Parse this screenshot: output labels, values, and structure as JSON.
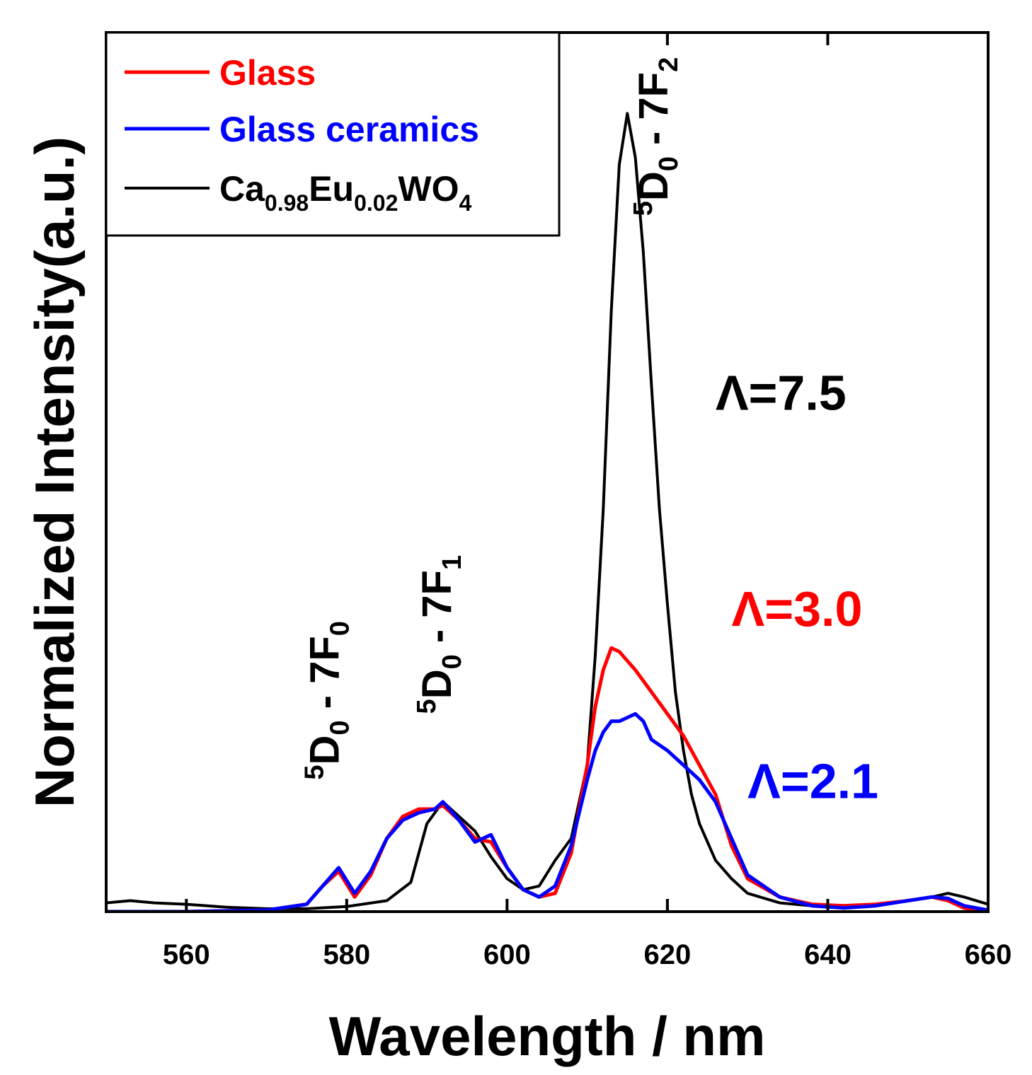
{
  "chart_data": {
    "type": "line",
    "title": "",
    "xlabel": "Wavelength / nm",
    "ylabel": "Normalized Intensity(a.u.)",
    "xlim": [
      550,
      660
    ],
    "ylim": [
      0,
      1.1
    ],
    "x_ticks": [
      560,
      580,
      600,
      620,
      640,
      660
    ],
    "y_ticks_shown": false,
    "grid": false,
    "legend_position": "top-left",
    "legend": [
      {
        "label": "Glass",
        "color": "#ff0000"
      },
      {
        "label": "Glass ceramics",
        "color": "#0000ff"
      },
      {
        "parts": [
          {
            "t": "Ca",
            "sub": false
          },
          {
            "t": "0.98",
            "sub": true
          },
          {
            "t": "Eu",
            "sub": false
          },
          {
            "t": "0.02",
            "sub": true
          },
          {
            "t": "WO",
            "sub": false
          },
          {
            "t": "4",
            "sub": true
          }
        ],
        "color": "#000000"
      }
    ],
    "series": [
      {
        "name": "Glass",
        "color": "#ff0000",
        "x": [
          550,
          560,
          570,
          575,
          577,
          579,
          581,
          583,
          585,
          587,
          589,
          591,
          592,
          594,
          596,
          598,
          600,
          602,
          604,
          606,
          608,
          610,
          611,
          612,
          613,
          614,
          616,
          618,
          620,
          622,
          624,
          626,
          628,
          630,
          634,
          638,
          642,
          646,
          650,
          653,
          655,
          657,
          660
        ],
        "y": [
          0.0,
          0.0,
          0.002,
          0.01,
          0.035,
          0.055,
          0.02,
          0.05,
          0.1,
          0.13,
          0.14,
          0.14,
          0.145,
          0.125,
          0.1,
          0.095,
          0.06,
          0.03,
          0.02,
          0.025,
          0.08,
          0.2,
          0.28,
          0.33,
          0.36,
          0.355,
          0.33,
          0.3,
          0.27,
          0.24,
          0.2,
          0.16,
          0.09,
          0.045,
          0.02,
          0.01,
          0.008,
          0.01,
          0.015,
          0.02,
          0.015,
          0.005,
          0.0
        ]
      },
      {
        "name": "Glass ceramics",
        "color": "#0000ff",
        "x": [
          550,
          560,
          570,
          575,
          577,
          579,
          581,
          583,
          585,
          587,
          589,
          591,
          592,
          594,
          596,
          598,
          600,
          602,
          604,
          606,
          608,
          610,
          611,
          612,
          613,
          614,
          615,
          616,
          617,
          618,
          620,
          622,
          624,
          626,
          628,
          630,
          634,
          638,
          642,
          646,
          650,
          653,
          655,
          657,
          660
        ],
        "y": [
          0.0,
          0.0,
          0.002,
          0.01,
          0.035,
          0.06,
          0.025,
          0.055,
          0.1,
          0.125,
          0.135,
          0.14,
          0.15,
          0.125,
          0.095,
          0.105,
          0.06,
          0.03,
          0.02,
          0.035,
          0.09,
          0.18,
          0.22,
          0.245,
          0.26,
          0.26,
          0.265,
          0.27,
          0.26,
          0.235,
          0.22,
          0.2,
          0.18,
          0.15,
          0.1,
          0.05,
          0.02,
          0.008,
          0.005,
          0.008,
          0.015,
          0.02,
          0.018,
          0.008,
          0.002
        ]
      },
      {
        "name": "Ca0.98Eu0.02WO4",
        "color": "#000000",
        "x": [
          550,
          553,
          556,
          560,
          565,
          570,
          575,
          580,
          585,
          588,
          590,
          592,
          594,
          596,
          598,
          600,
          602,
          604,
          606,
          608,
          610,
          611,
          612,
          613,
          614,
          615,
          616,
          617,
          618,
          619,
          620,
          621,
          622,
          623,
          624,
          626,
          628,
          630,
          634,
          638,
          642,
          646,
          650,
          653,
          655,
          657,
          660
        ],
        "y": [
          0.012,
          0.015,
          0.012,
          0.01,
          0.006,
          0.004,
          0.004,
          0.007,
          0.015,
          0.04,
          0.12,
          0.15,
          0.13,
          0.11,
          0.075,
          0.045,
          0.03,
          0.035,
          0.07,
          0.1,
          0.2,
          0.35,
          0.55,
          0.82,
          1.02,
          1.09,
          1.03,
          0.9,
          0.72,
          0.55,
          0.42,
          0.3,
          0.22,
          0.16,
          0.12,
          0.07,
          0.045,
          0.025,
          0.012,
          0.008,
          0.006,
          0.01,
          0.015,
          0.02,
          0.025,
          0.02,
          0.01
        ]
      }
    ],
    "annotations": [
      {
        "id": "f2",
        "main": "D",
        "pre": "5",
        "sub": "0",
        "mid": " - 7F",
        "sub2": "2",
        "x": 620,
        "y_data": 0.95,
        "rotation": -90,
        "color": "#000000"
      },
      {
        "id": "f1",
        "main": "D",
        "pre": "5",
        "sub": "0",
        "mid": " - 7F",
        "sub2": "1",
        "x": 593,
        "y_data": 0.27,
        "rotation": -90,
        "color": "#000000"
      },
      {
        "id": "f0",
        "main": "D",
        "pre": "5",
        "sub": "0",
        "mid": " - 7F",
        "sub2": "0",
        "x": 579,
        "y_data": 0.18,
        "rotation": -90,
        "color": "#000000"
      },
      {
        "id": "l75",
        "text": "Λ=7.5",
        "x": 626,
        "y_data": 0.685,
        "color": "#000000"
      },
      {
        "id": "l30",
        "text": "Λ=3.0",
        "x": 628,
        "y_data": 0.39,
        "color": "#ff0000"
      },
      {
        "id": "l21",
        "text": "Λ=2.1",
        "x": 630,
        "y_data": 0.155,
        "color": "#0000ff"
      }
    ]
  }
}
